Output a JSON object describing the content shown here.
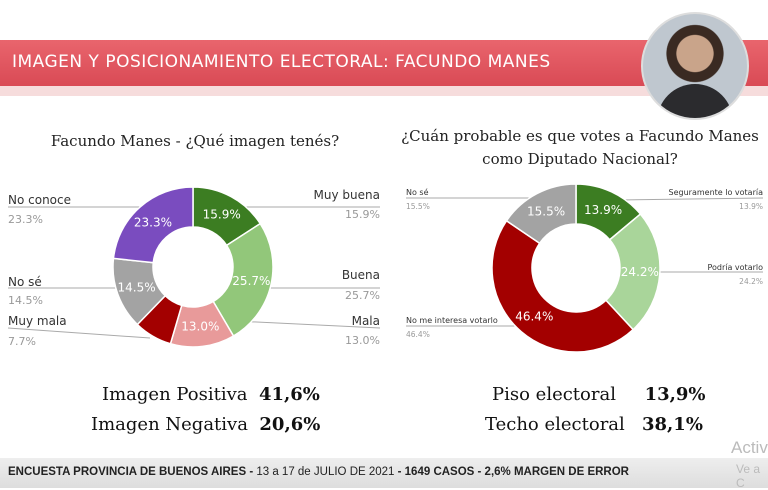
{
  "header": {
    "title": "IMAGEN Y POSICIONAMIENTO ELECTORAL: FACUNDO MANES"
  },
  "chart_data": [
    {
      "type": "pie",
      "title": "Facundo Manes - ¿Qué imagen tenés?",
      "categories": [
        "Muy buena",
        "Buena",
        "Mala",
        "Muy mala",
        "No sé",
        "No conoce"
      ],
      "values": [
        15.9,
        25.7,
        13.0,
        7.7,
        14.5,
        23.3
      ],
      "labels": [
        "15.9%",
        "25.7%",
        "13.0%",
        "7.7%",
        "14.5%",
        "23.3%"
      ],
      "colors": [
        "#3c7d22",
        "#92c77a",
        "#e89a9a",
        "#a30000",
        "#a3a3a3",
        "#7a4cbf"
      ]
    },
    {
      "type": "pie",
      "title": "¿Cuán probable es que votes a Facundo Manes como Diputado Nacional?",
      "categories": [
        "Seguramente lo votaría",
        "Podría votarlo",
        "No me interesa votarlo",
        "No sé"
      ],
      "values": [
        13.9,
        24.2,
        46.4,
        15.5
      ],
      "labels": [
        "13.9%",
        "24.2%",
        "46.4%",
        "15.5%"
      ],
      "colors": [
        "#3c7d22",
        "#a9d59a",
        "#a30000",
        "#a3a3a3"
      ]
    }
  ],
  "left": {
    "title": "Facundo Manes - ¿Qué imagen tenés?",
    "pos_label": "Imagen Positiva",
    "pos_value": "41,6%",
    "neg_label": "Imagen Negativa",
    "neg_value": "20,6%"
  },
  "right": {
    "title1": "¿Cuán probable es que votes a Facundo Manes",
    "title2": "como Diputado Nacional?",
    "floor_label": "Piso electoral",
    "floor_value": "13,9%",
    "ceil_label": "Techo electoral",
    "ceil_value": "38,1%"
  },
  "footer": {
    "a": "ENCUESTA PROVINCIA DE BUENOS AIRES -",
    "b": " 13 a 17 de  JULIO DE 2021 ",
    "c": "- 1649 CASOS - 2,6% MARGEN DE ERROR"
  },
  "watermark": {
    "l1": "Activ",
    "l2": "Ve a C"
  }
}
